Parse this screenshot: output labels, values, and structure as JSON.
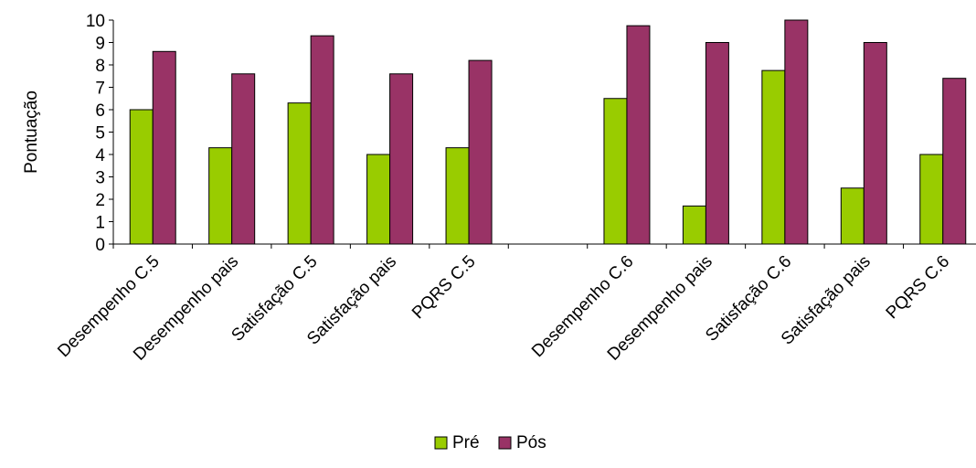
{
  "chart_data": {
    "type": "bar",
    "categories": [
      "Desempenho C.5",
      "Desempenho pais",
      "Satisfação C.5",
      "Satisfação pais",
      "PQRS C.5",
      "",
      "Desempenho C.6",
      "Desempenho pais",
      "Satisfação C.6",
      "Satisfação pais",
      "PQRS C.6"
    ],
    "series": [
      {
        "name": "Pré",
        "color": "#99cc00",
        "values": [
          6.0,
          4.3,
          6.3,
          4.0,
          4.3,
          null,
          6.5,
          1.7,
          7.75,
          2.5,
          4.0
        ]
      },
      {
        "name": "Pós",
        "color": "#993366",
        "values": [
          8.6,
          7.6,
          9.3,
          7.6,
          8.2,
          null,
          9.75,
          9.0,
          10.0,
          9.0,
          7.4
        ]
      }
    ],
    "title": "",
    "xlabel": "",
    "ylabel": "Pontuação",
    "ylim": [
      0,
      10
    ],
    "yticks": [
      "0",
      "1",
      "2",
      "3",
      "4",
      "5",
      "6",
      "7",
      "8",
      "9",
      "10"
    ],
    "grid": false,
    "legend_position": "bottom-center"
  }
}
